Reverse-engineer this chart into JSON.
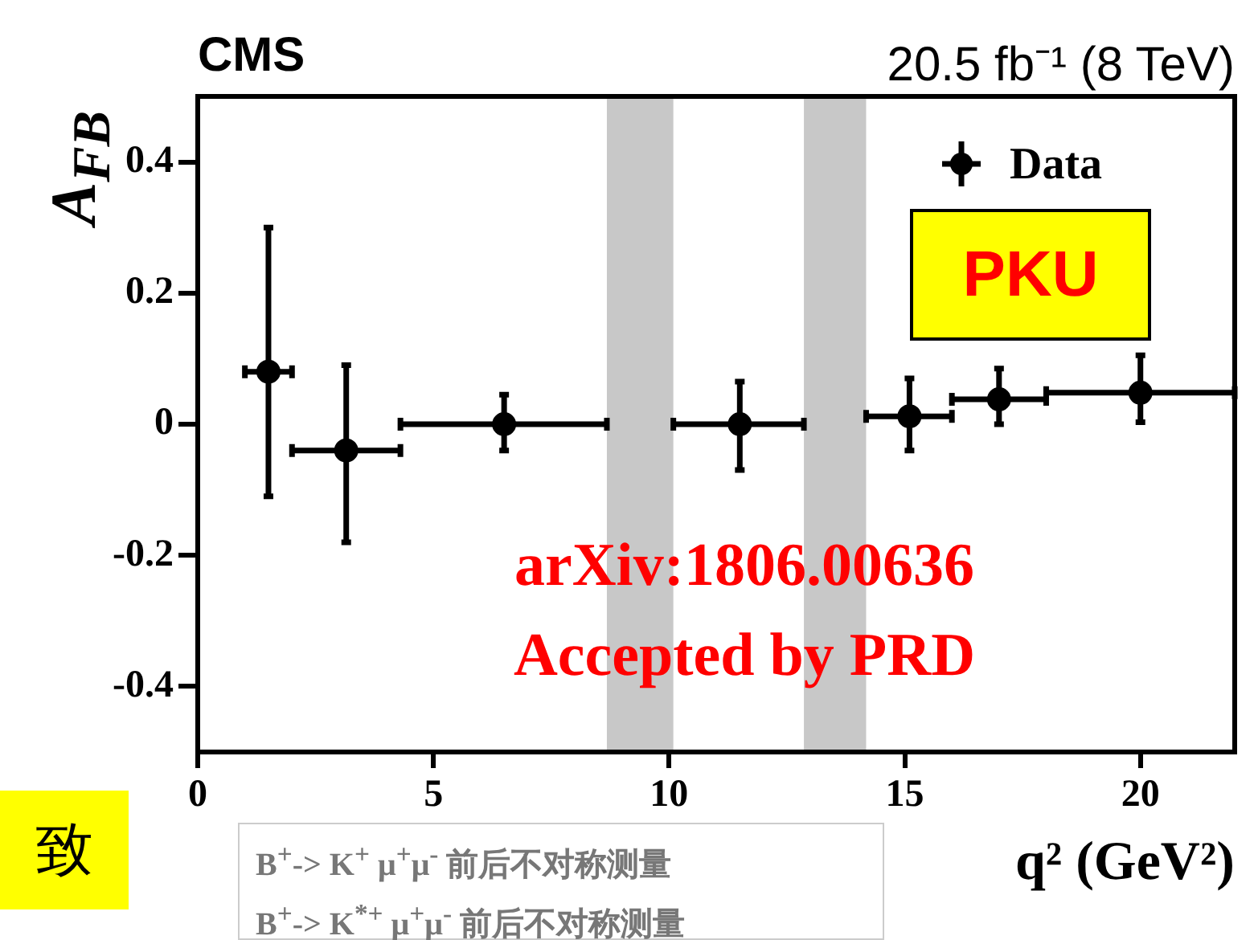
{
  "chart_data": {
    "type": "scatter",
    "title": "CMS",
    "subtitle": "20.5 fb⁻¹ (8 TeV)",
    "xlabel": "q² (GeV²)",
    "ylabel": "A$_{FB}$",
    "series": [
      {
        "name": "Data",
        "color": "#000000",
        "x": [
          1.5,
          3.15,
          6.5,
          11.5,
          15.1,
          17,
          20
        ],
        "values": [
          0.08,
          -0.04,
          0,
          0,
          0.012,
          0.038,
          0.048
        ],
        "errors": [
          [
            -0.11,
            0.3
          ],
          [
            -0.18,
            0.09
          ],
          [
            -0.04,
            0.045
          ],
          [
            -0.07,
            0.065
          ],
          [
            -0.04,
            0.07
          ],
          [
            0,
            0.085
          ],
          [
            0.003,
            0.105
          ]
        ],
        "xerrors": [
          [
            1,
            2
          ],
          [
            2,
            4.3
          ],
          [
            4.3,
            8.68
          ],
          [
            10.09,
            12.86
          ],
          [
            14.18,
            16
          ],
          [
            16,
            18
          ],
          [
            18,
            22
          ]
        ]
      }
    ],
    "bands": [
      {
        "axis": "x",
        "from": 8.68,
        "to": 10.09,
        "color": "#c8c8c8"
      },
      {
        "axis": "x",
        "from": 12.86,
        "to": 14.18,
        "color": "#c8c8c8"
      }
    ],
    "annotations": [
      "PKU",
      "arXiv:1806.00636",
      "Accepted by PRD",
      "致",
      "B$^{+}$-> K$^{+}$ μ$^{+}$μ$^{-}$ 前后不对称测量",
      "B$^{+}$-> K$^{*+}$ μ$^{+}$μ$^{-}$ 前后不对称测量"
    ],
    "xlim": [
      0,
      22
    ],
    "xticks": [
      0,
      5,
      10,
      15,
      20
    ],
    "ylim": [
      -0.5,
      0.5
    ],
    "yticks": [
      -0.4,
      -0.2,
      0,
      0.2,
      0.4
    ],
    "grid": false,
    "legend": "top right",
    "marker": "circle"
  }
}
